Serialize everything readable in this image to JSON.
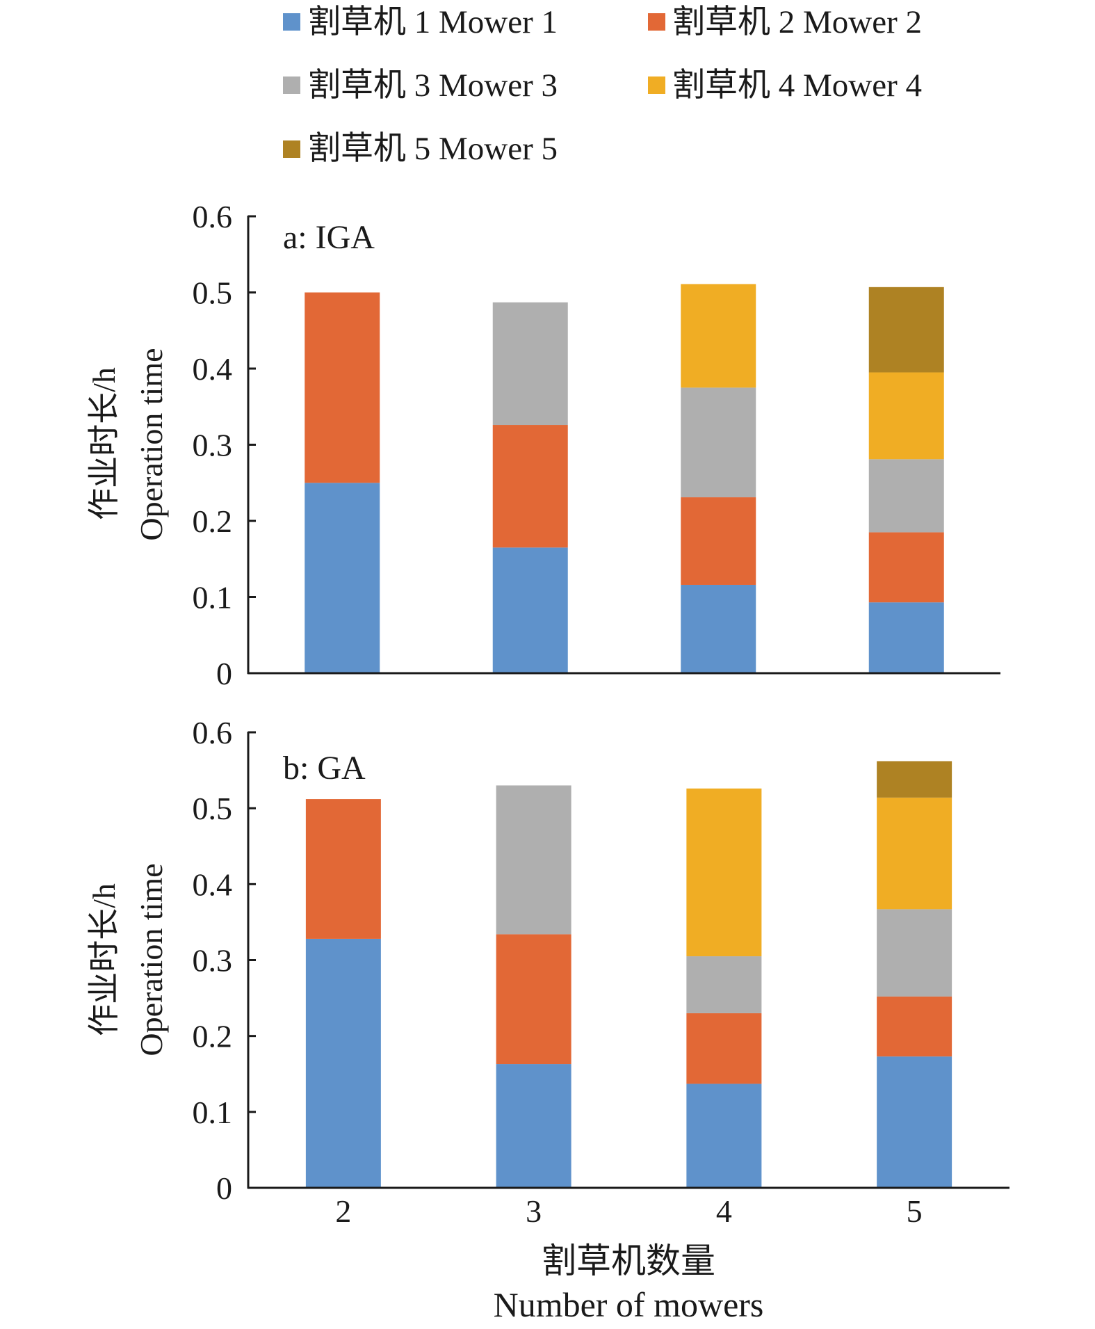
{
  "chart_data": [
    {
      "type": "bar",
      "stacked": true,
      "panel_label": "a: IGA",
      "categories": [
        "2",
        "3",
        "4",
        "5"
      ],
      "series": [
        {
          "name": "割草机 1 Mower 1",
          "color": "#5F92CB",
          "values": [
            0.25,
            0.165,
            0.116,
            0.093
          ]
        },
        {
          "name": "割草机 2 Mower 2",
          "color": "#E26836",
          "values": [
            0.25,
            0.161,
            0.115,
            0.092
          ]
        },
        {
          "name": "割草机 3 Mower 3",
          "color": "#AFAFAF",
          "values": [
            null,
            0.161,
            0.144,
            0.096
          ]
        },
        {
          "name": "割草机 4 Mower 4",
          "color": "#F0AD24",
          "values": [
            null,
            null,
            0.136,
            0.114
          ]
        },
        {
          "name": "割草机 5 Mower 5",
          "color": "#AE8223",
          "values": [
            null,
            null,
            null,
            0.112
          ]
        }
      ],
      "ylabel_cn": "作业时长/h",
      "ylabel_en": "Operation time",
      "ylim": [
        0,
        0.6
      ],
      "yticks": [
        "0",
        "0.1",
        "0.2",
        "0.3",
        "0.4",
        "0.5",
        "0.6"
      ],
      "grid": false
    },
    {
      "type": "bar",
      "stacked": true,
      "panel_label": "b: GA",
      "categories": [
        "2",
        "3",
        "4",
        "5"
      ],
      "series": [
        {
          "name": "割草机 1 Mower 1",
          "color": "#5F92CB",
          "values": [
            0.328,
            0.163,
            0.137,
            0.173
          ]
        },
        {
          "name": "割草机 2 Mower 2",
          "color": "#E26836",
          "values": [
            0.184,
            0.171,
            0.093,
            0.079
          ]
        },
        {
          "name": "割草机 3 Mower 3",
          "color": "#AFAFAF",
          "values": [
            null,
            0.196,
            0.075,
            0.115
          ]
        },
        {
          "name": "割草机 4 Mower 4",
          "color": "#F0AD24",
          "values": [
            null,
            null,
            0.221,
            0.147
          ]
        },
        {
          "name": "割草机 5 Mower 5",
          "color": "#AE8223",
          "values": [
            null,
            null,
            null,
            0.048
          ]
        }
      ],
      "ylabel_cn": "作业时长/h",
      "ylabel_en": "Operation time",
      "xlabel_cn": "割草机数量",
      "xlabel_en": "Number of mowers",
      "ylim": [
        0,
        0.6
      ],
      "yticks": [
        "0",
        "0.1",
        "0.2",
        "0.3",
        "0.4",
        "0.5",
        "0.6"
      ],
      "grid": false
    }
  ],
  "legend": {
    "placement": "top",
    "items": [
      {
        "label": "割草机 1 Mower 1",
        "color": "#5F92CB"
      },
      {
        "label": "割草机 2 Mower 2",
        "color": "#E26836"
      },
      {
        "label": "割草机 3 Mower 3",
        "color": "#AFAFAF"
      },
      {
        "label": "割草机 4 Mower 4",
        "color": "#F0AD24"
      },
      {
        "label": "割草机 5 Mower 5",
        "color": "#AE8223"
      }
    ]
  }
}
